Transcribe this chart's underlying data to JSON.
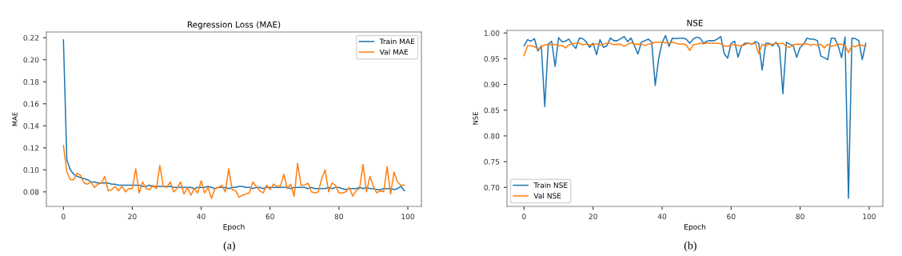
{
  "chart_data": [
    {
      "type": "line",
      "title": "Regression Loss (MAE)",
      "xlabel": "Epoch",
      "ylabel": "MAE",
      "x": [
        0,
        1,
        2,
        3,
        4,
        5,
        6,
        7,
        8,
        9,
        10,
        11,
        12,
        13,
        14,
        15,
        16,
        17,
        18,
        19,
        20,
        21,
        22,
        23,
        24,
        25,
        26,
        27,
        28,
        29,
        30,
        31,
        32,
        33,
        34,
        35,
        36,
        37,
        38,
        39,
        40,
        41,
        42,
        43,
        44,
        45,
        46,
        47,
        48,
        49,
        50,
        51,
        52,
        53,
        54,
        55,
        56,
        57,
        58,
        59,
        60,
        61,
        62,
        63,
        64,
        65,
        66,
        67,
        68,
        69,
        70,
        71,
        72,
        73,
        74,
        75,
        76,
        77,
        78,
        79,
        80,
        81,
        82,
        83,
        84,
        85,
        86,
        87,
        88,
        89,
        90,
        91,
        92,
        93,
        94,
        95,
        96,
        97,
        98,
        99
      ],
      "series": [
        {
          "name": "Train MAE",
          "color": "#1f77b4",
          "values": [
            0.218,
            0.109,
            0.1,
            0.096,
            0.094,
            0.093,
            0.092,
            0.091,
            0.089,
            0.089,
            0.088,
            0.088,
            0.088,
            0.088,
            0.087,
            0.087,
            0.086,
            0.086,
            0.086,
            0.086,
            0.086,
            0.086,
            0.086,
            0.085,
            0.085,
            0.086,
            0.085,
            0.085,
            0.085,
            0.085,
            0.085,
            0.085,
            0.084,
            0.084,
            0.084,
            0.084,
            0.084,
            0.084,
            0.083,
            0.084,
            0.084,
            0.084,
            0.085,
            0.084,
            0.083,
            0.084,
            0.084,
            0.084,
            0.083,
            0.084,
            0.084,
            0.085,
            0.085,
            0.084,
            0.084,
            0.083,
            0.084,
            0.084,
            0.083,
            0.084,
            0.084,
            0.084,
            0.084,
            0.084,
            0.084,
            0.084,
            0.083,
            0.084,
            0.084,
            0.084,
            0.084,
            0.083,
            0.084,
            0.083,
            0.083,
            0.083,
            0.083,
            0.084,
            0.083,
            0.084,
            0.084,
            0.083,
            0.082,
            0.083,
            0.083,
            0.083,
            0.084,
            0.083,
            0.084,
            0.083,
            0.083,
            0.082,
            0.082,
            0.083,
            0.083,
            0.083,
            0.082,
            0.083,
            0.085,
            0.081
          ]
        },
        {
          "name": "Val MAE",
          "color": "#ff7f0e",
          "values": [
            0.122,
            0.098,
            0.091,
            0.091,
            0.097,
            0.095,
            0.088,
            0.087,
            0.089,
            0.084,
            0.087,
            0.088,
            0.094,
            0.081,
            0.082,
            0.085,
            0.081,
            0.085,
            0.08,
            0.083,
            0.083,
            0.101,
            0.079,
            0.089,
            0.083,
            0.082,
            0.086,
            0.083,
            0.104,
            0.085,
            0.084,
            0.089,
            0.08,
            0.083,
            0.089,
            0.078,
            0.084,
            0.077,
            0.083,
            0.079,
            0.09,
            0.079,
            0.084,
            0.074,
            0.083,
            0.084,
            0.086,
            0.08,
            0.101,
            0.082,
            0.081,
            0.075,
            0.077,
            0.078,
            0.079,
            0.089,
            0.085,
            0.081,
            0.079,
            0.086,
            0.082,
            0.087,
            0.085,
            0.085,
            0.096,
            0.083,
            0.087,
            0.076,
            0.106,
            0.086,
            0.086,
            0.088,
            0.08,
            0.079,
            0.08,
            0.092,
            0.1,
            0.08,
            0.088,
            0.086,
            0.079,
            0.079,
            0.08,
            0.084,
            0.076,
            0.081,
            0.083,
            0.105,
            0.08,
            0.094,
            0.085,
            0.079,
            0.081,
            0.08,
            0.103,
            0.078,
            0.098,
            0.089,
            0.086,
            0.086
          ]
        }
      ],
      "xlim": [
        -4.95,
        103.95
      ],
      "xticks": [
        0,
        20,
        40,
        60,
        80,
        100
      ],
      "ylim": [
        0.0668,
        0.2252
      ],
      "yticks": [
        {
          "value": 0.08,
          "label": "0.08"
        },
        {
          "value": 0.1,
          "label": "0.10"
        },
        {
          "value": 0.12,
          "label": "0.12"
        },
        {
          "value": 0.14,
          "label": "0.14"
        },
        {
          "value": 0.16,
          "label": "0.16"
        },
        {
          "value": 0.18,
          "label": "0.18"
        },
        {
          "value": 0.2,
          "label": "0.20"
        },
        {
          "value": 0.22,
          "label": "0.22"
        }
      ],
      "legend": "top right",
      "grid": false,
      "annotations": [
        "(a)"
      ]
    },
    {
      "type": "line",
      "title": "NSE",
      "xlabel": "Epoch",
      "ylabel": "NSE",
      "x": [
        0,
        1,
        2,
        3,
        4,
        5,
        6,
        7,
        8,
        9,
        10,
        11,
        12,
        13,
        14,
        15,
        16,
        17,
        18,
        19,
        20,
        21,
        22,
        23,
        24,
        25,
        26,
        27,
        28,
        29,
        30,
        31,
        32,
        33,
        34,
        35,
        36,
        37,
        38,
        39,
        40,
        41,
        42,
        43,
        44,
        45,
        46,
        47,
        48,
        49,
        50,
        51,
        52,
        53,
        54,
        55,
        56,
        57,
        58,
        59,
        60,
        61,
        62,
        63,
        64,
        65,
        66,
        67,
        68,
        69,
        70,
        71,
        72,
        73,
        74,
        75,
        76,
        77,
        78,
        79,
        80,
        81,
        82,
        83,
        84,
        85,
        86,
        87,
        88,
        89,
        90,
        91,
        92,
        93,
        94,
        95,
        96,
        97,
        98,
        99
      ],
      "series": [
        {
          "name": "Train NSE",
          "color": "#1f77b4",
          "values": [
            0.975,
            0.987,
            0.984,
            0.989,
            0.965,
            0.975,
            0.857,
            0.978,
            0.984,
            0.935,
            0.991,
            0.983,
            0.984,
            0.988,
            0.978,
            0.97,
            0.99,
            0.989,
            0.983,
            0.972,
            0.98,
            0.958,
            0.987,
            0.972,
            0.975,
            0.99,
            0.985,
            0.985,
            0.989,
            0.993,
            0.983,
            0.99,
            0.975,
            0.959,
            0.982,
            0.985,
            0.988,
            0.982,
            0.898,
            0.95,
            0.981,
            0.995,
            0.974,
            0.99,
            0.989,
            0.99,
            0.99,
            0.988,
            0.98,
            0.988,
            0.992,
            0.99,
            0.98,
            0.984,
            0.985,
            0.985,
            0.988,
            0.993,
            0.96,
            0.951,
            0.98,
            0.984,
            0.953,
            0.975,
            0.98,
            0.98,
            0.978,
            0.983,
            0.98,
            0.928,
            0.98,
            0.98,
            0.975,
            0.982,
            0.972,
            0.882,
            0.982,
            0.978,
            0.975,
            0.953,
            0.972,
            0.978,
            0.99,
            0.988,
            0.988,
            0.985,
            0.955,
            0.952,
            0.948,
            0.99,
            0.99,
            0.975,
            0.952,
            0.992,
            0.679,
            0.99,
            0.989,
            0.985,
            0.948,
            0.98
          ]
        },
        {
          "name": "Val NSE",
          "color": "#ff7f0e",
          "values": [
            0.956,
            0.975,
            0.975,
            0.974,
            0.968,
            0.974,
            0.977,
            0.977,
            0.977,
            0.978,
            0.975,
            0.976,
            0.971,
            0.977,
            0.979,
            0.98,
            0.98,
            0.977,
            0.978,
            0.977,
            0.977,
            0.979,
            0.976,
            0.978,
            0.98,
            0.98,
            0.977,
            0.978,
            0.978,
            0.974,
            0.978,
            0.981,
            0.978,
            0.978,
            0.978,
            0.976,
            0.978,
            0.979,
            0.982,
            0.982,
            0.982,
            0.981,
            0.98,
            0.982,
            0.98,
            0.978,
            0.979,
            0.977,
            0.966,
            0.977,
            0.978,
            0.98,
            0.979,
            0.98,
            0.98,
            0.98,
            0.98,
            0.979,
            0.975,
            0.974,
            0.977,
            0.977,
            0.976,
            0.975,
            0.977,
            0.98,
            0.979,
            0.98,
            0.96,
            0.978,
            0.975,
            0.978,
            0.978,
            0.98,
            0.979,
            0.98,
            0.974,
            0.972,
            0.977,
            0.978,
            0.978,
            0.978,
            0.979,
            0.976,
            0.978,
            0.976,
            0.978,
            0.971,
            0.978,
            0.974,
            0.976,
            0.978,
            0.978,
            0.976,
            0.962,
            0.975,
            0.973,
            0.977,
            0.976,
            0.974
          ]
        }
      ],
      "xlim": [
        -4.95,
        103.95
      ],
      "xticks": [
        0,
        20,
        40,
        60,
        80,
        100
      ],
      "ylim": [
        0.663,
        1.005
      ],
      "yticks": [
        {
          "value": 0.7,
          "label": "0.70"
        },
        {
          "value": 0.75,
          "label": "0.75"
        },
        {
          "value": 0.8,
          "label": "0.80"
        },
        {
          "value": 0.85,
          "label": "0.85"
        },
        {
          "value": 0.9,
          "label": "0.90"
        },
        {
          "value": 0.95,
          "label": "0.95"
        },
        {
          "value": 1.0,
          "label": "1.00"
        }
      ],
      "legend": "bottom left",
      "grid": false,
      "annotations": [
        "(b)"
      ]
    }
  ]
}
